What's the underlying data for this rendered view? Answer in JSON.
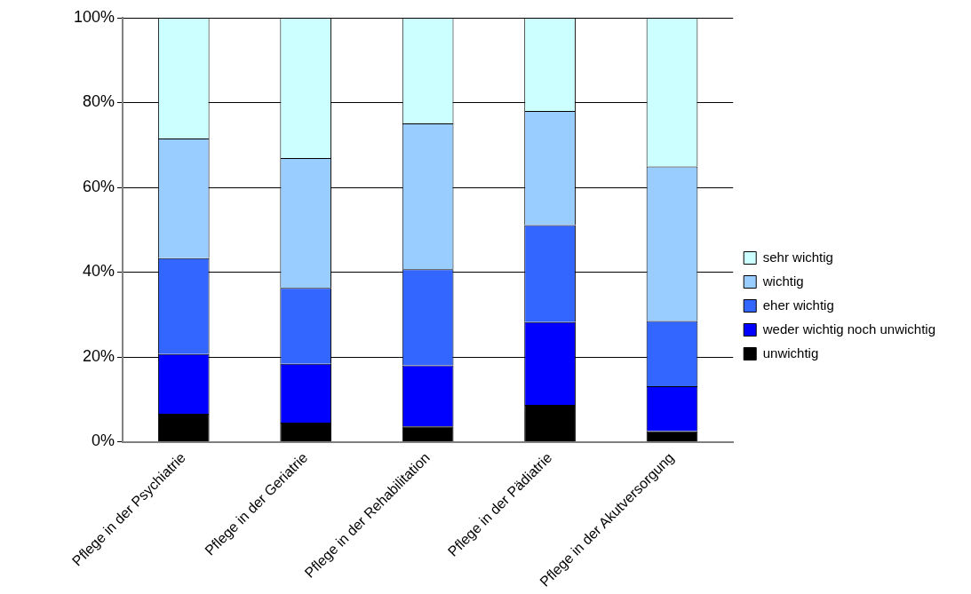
{
  "chart_data": {
    "type": "bar",
    "stacked": true,
    "categories": [
      "Pflege in der Psychiatrie",
      "Pflege in der Geriatrie",
      "Pflege in der Rehabilitation",
      "Pflege in der Pädiatrie",
      "Pflege in der Akutversorgung"
    ],
    "series": [
      {
        "name": "unwichtig",
        "color": "#000000",
        "values": [
          6.6,
          4.5,
          3.6,
          8.7,
          2.5
        ]
      },
      {
        "name": "weder wichtig noch unwichtig",
        "color": "#0000ff",
        "values": [
          14.1,
          13.9,
          14.4,
          19.5,
          10.6
        ]
      },
      {
        "name": "eher wichtig",
        "color": "#3366ff",
        "values": [
          22.6,
          17.9,
          22.7,
          22.9,
          15.4
        ]
      },
      {
        "name": "wichtig",
        "color": "#99ccff",
        "values": [
          28.2,
          30.6,
          34.4,
          26.9,
          36.4
        ]
      },
      {
        "name": "sehr wichtig",
        "color": "#ccffff",
        "values": [
          28.5,
          33.1,
          24.9,
          22.0,
          35.1
        ]
      }
    ],
    "ylim": [
      0,
      100
    ],
    "yticks": [
      {
        "value": 0,
        "label": "0%"
      },
      {
        "value": 20,
        "label": "20%"
      },
      {
        "value": 40,
        "label": "40%"
      },
      {
        "value": 60,
        "label": "60%"
      },
      {
        "value": 80,
        "label": "80%"
      },
      {
        "value": 100,
        "label": "100%"
      }
    ],
    "grid": "y",
    "legend": "right"
  }
}
